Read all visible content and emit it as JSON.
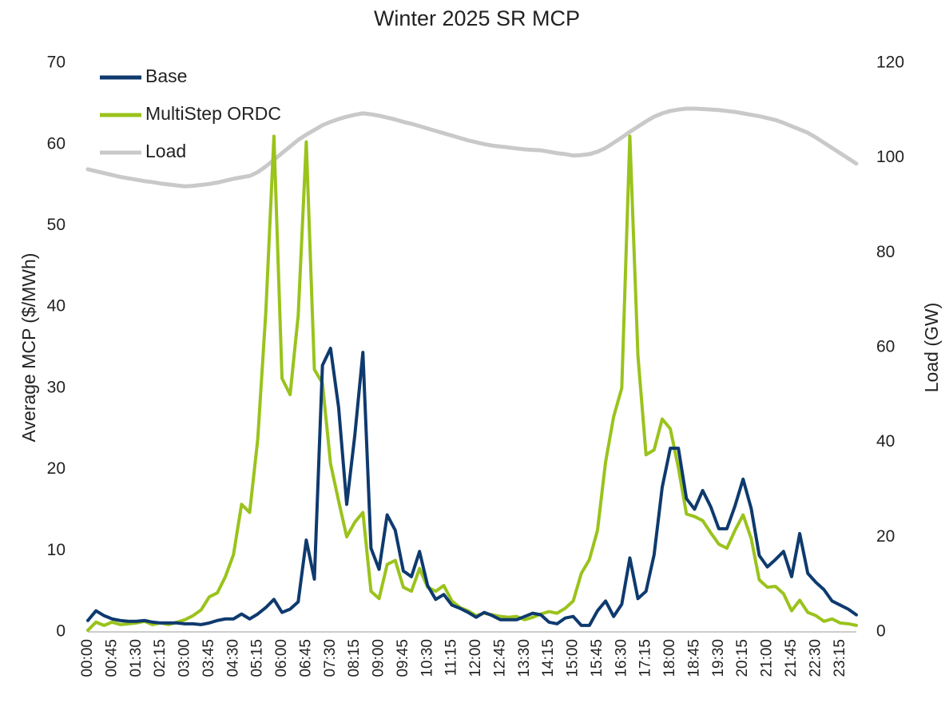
{
  "chart_data": {
    "type": "line",
    "title": "Winter 2025 SR MCP",
    "y_label": "Average MCP ($/MWh)",
    "y2_label": "Load (GW)",
    "legend": "upper left",
    "categories": [
      "00:00",
      null,
      null,
      "00:45",
      null,
      null,
      "01:30",
      null,
      null,
      "02:15",
      null,
      null,
      "03:00",
      null,
      null,
      "03:45",
      null,
      null,
      "04:30",
      null,
      null,
      "05:15",
      null,
      null,
      "06:00",
      null,
      null,
      "06:45",
      null,
      null,
      "07:30",
      null,
      null,
      "08:15",
      null,
      null,
      "09:00",
      null,
      null,
      "09:45",
      null,
      null,
      "10:30",
      null,
      null,
      "11:15",
      null,
      null,
      "12:00",
      null,
      null,
      "12:45",
      null,
      null,
      "13:30",
      null,
      null,
      "14:15",
      null,
      null,
      "15:00",
      null,
      null,
      "15:45",
      null,
      null,
      "16:30",
      null,
      null,
      "17:15",
      null,
      null,
      "18:00",
      null,
      null,
      "18:45",
      null,
      null,
      "19:30",
      null,
      null,
      "20:15",
      null,
      null,
      "21:00",
      null,
      null,
      "21:45",
      null,
      null,
      "22:30",
      null,
      null,
      "23:15",
      null,
      null
    ],
    "ylim": [
      0,
      70
    ],
    "yticks": [
      0,
      10,
      20,
      30,
      40,
      50,
      60,
      70
    ],
    "y2lim": [
      0,
      120
    ],
    "y2ticks": [
      0,
      20,
      40,
      60,
      80,
      100,
      120
    ],
    "series": [
      {
        "name": "Base",
        "color": "#0e3a6e",
        "values": [
          1.4,
          2.6,
          2.0,
          1.6,
          1.4,
          1.3,
          1.3,
          1.4,
          1.2,
          1.1,
          1.1,
          1.1,
          1.0,
          1.0,
          0.9,
          1.1,
          1.4,
          1.6,
          1.6,
          2.2,
          1.6,
          2.2,
          3.0,
          4.0,
          2.4,
          2.8,
          3.7,
          11.3,
          6.5,
          32.8,
          34.9,
          27.6,
          15.7,
          24.2,
          34.4,
          10.3,
          7.7,
          14.4,
          12.5,
          7.5,
          6.8,
          9.9,
          5.7,
          4.0,
          4.6,
          3.3,
          2.9,
          2.4,
          1.8,
          2.4,
          2.0,
          1.5,
          1.5,
          1.5,
          1.9,
          2.3,
          2.1,
          1.2,
          1.0,
          1.7,
          1.9,
          0.8,
          0.8,
          2.6,
          3.8,
          1.9,
          3.4,
          9.1,
          4.1,
          5.0,
          9.5,
          17.8,
          22.6,
          22.6,
          16.4,
          15.1,
          17.4,
          15.4,
          12.7,
          12.7,
          15.5,
          18.8,
          15.2,
          9.4,
          8.0,
          8.9,
          9.9,
          6.8,
          12.1,
          7.2,
          6.1,
          5.2,
          3.8,
          3.3,
          2.8,
          2.1
        ]
      },
      {
        "name": "MultiStep ORDC",
        "color": "#9ac31c",
        "values": [
          0.2,
          1.2,
          0.8,
          1.2,
          0.9,
          1.0,
          1.1,
          1.3,
          0.9,
          1.1,
          0.9,
          1.2,
          1.5,
          2.0,
          2.7,
          4.3,
          4.8,
          6.8,
          9.5,
          15.7,
          14.7,
          23.7,
          39.4,
          61.0,
          31.2,
          29.2,
          38.9,
          60.3,
          32.3,
          30.6,
          20.7,
          16.1,
          11.7,
          13.5,
          14.7,
          5.0,
          4.1,
          8.3,
          8.8,
          5.5,
          5.0,
          7.8,
          5.5,
          5.0,
          5.7,
          3.8,
          3.0,
          2.6,
          2.0,
          2.3,
          2.1,
          1.9,
          1.8,
          1.9,
          1.5,
          1.8,
          2.2,
          2.5,
          2.3,
          2.9,
          3.8,
          7.2,
          8.9,
          12.5,
          20.9,
          26.5,
          30.0,
          61.0,
          34.0,
          21.8,
          22.4,
          26.2,
          25.0,
          20.2,
          14.5,
          14.2,
          13.7,
          12.2,
          10.8,
          10.3,
          12.5,
          14.4,
          11.5,
          6.4,
          5.5,
          5.6,
          4.7,
          2.6,
          3.9,
          2.4,
          2.0,
          1.3,
          1.6,
          1.1,
          1.0,
          0.8
        ]
      },
      {
        "name": "Load",
        "color": "#c9c9c9",
        "axis": "y2",
        "values": [
          97.6,
          97.2,
          96.8,
          96.4,
          96.0,
          95.7,
          95.4,
          95.1,
          94.9,
          94.6,
          94.4,
          94.2,
          94.0,
          94.1,
          94.3,
          94.5,
          94.8,
          95.2,
          95.6,
          95.9,
          96.2,
          97.0,
          98.2,
          99.6,
          101.0,
          102.4,
          103.8,
          104.9,
          105.9,
          106.9,
          107.6,
          108.2,
          108.7,
          109.1,
          109.4,
          109.2,
          108.9,
          108.5,
          108.1,
          107.6,
          107.2,
          106.7,
          106.2,
          105.7,
          105.2,
          104.7,
          104.2,
          103.7,
          103.3,
          102.9,
          102.6,
          102.4,
          102.2,
          102.0,
          101.8,
          101.7,
          101.6,
          101.3,
          101.0,
          100.8,
          100.5,
          100.6,
          100.8,
          101.3,
          102.1,
          103.2,
          104.3,
          105.5,
          106.6,
          107.7,
          108.7,
          109.4,
          109.9,
          110.2,
          110.4,
          110.4,
          110.3,
          110.2,
          110.1,
          109.9,
          109.7,
          109.4,
          109.1,
          108.8,
          108.4,
          108.0,
          107.4,
          106.7,
          106.0,
          105.3,
          104.3,
          103.2,
          102.1,
          101.0,
          99.9,
          98.8
        ]
      }
    ]
  }
}
